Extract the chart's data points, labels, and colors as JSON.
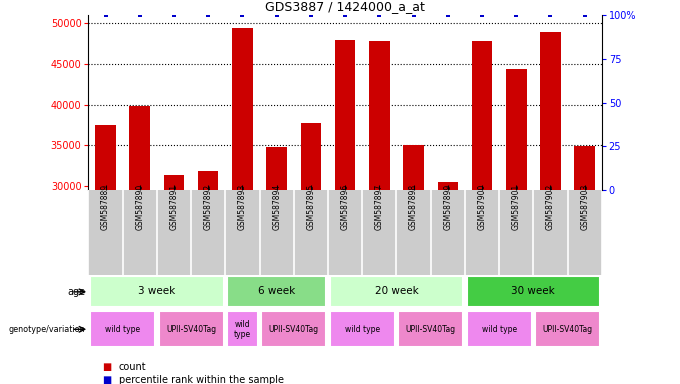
{
  "title": "GDS3887 / 1424000_a_at",
  "samples": [
    "GSM587889",
    "GSM587890",
    "GSM587891",
    "GSM587892",
    "GSM587893",
    "GSM587894",
    "GSM587895",
    "GSM587896",
    "GSM587897",
    "GSM587898",
    "GSM587899",
    "GSM587900",
    "GSM587901",
    "GSM587902",
    "GSM587903"
  ],
  "counts": [
    37500,
    39800,
    31300,
    31800,
    49500,
    34800,
    37700,
    48000,
    47900,
    35100,
    30500,
    47900,
    44400,
    49000,
    34900
  ],
  "percentile": [
    100,
    100,
    100,
    100,
    100,
    100,
    100,
    100,
    100,
    100,
    100,
    100,
    100,
    100,
    100
  ],
  "ylim_left": [
    29500,
    51000
  ],
  "ylim_right": [
    0,
    100
  ],
  "yticks_left": [
    30000,
    35000,
    40000,
    45000,
    50000
  ],
  "yticks_right": [
    0,
    25,
    50,
    75,
    100
  ],
  "bar_color": "#cc0000",
  "dot_color": "#0000cc",
  "age_groups": [
    {
      "label": "3 week",
      "start": 0,
      "end": 4,
      "color": "#ccffcc"
    },
    {
      "label": "6 week",
      "start": 4,
      "end": 7,
      "color": "#88dd88"
    },
    {
      "label": "20 week",
      "start": 7,
      "end": 11,
      "color": "#ccffcc"
    },
    {
      "label": "30 week",
      "start": 11,
      "end": 15,
      "color": "#44cc44"
    }
  ],
  "genotype_groups": [
    {
      "label": "wild type",
      "start": 0,
      "end": 2,
      "color": "#ee88ee"
    },
    {
      "label": "UPII-SV40Tag",
      "start": 2,
      "end": 4,
      "color": "#ee88cc"
    },
    {
      "label": "wild\ntype",
      "start": 4,
      "end": 5,
      "color": "#ee88ee"
    },
    {
      "label": "UPII-SV40Tag",
      "start": 5,
      "end": 7,
      "color": "#ee88cc"
    },
    {
      "label": "wild type",
      "start": 7,
      "end": 9,
      "color": "#ee88ee"
    },
    {
      "label": "UPII-SV40Tag",
      "start": 9,
      "end": 11,
      "color": "#ee88cc"
    },
    {
      "label": "wild type",
      "start": 11,
      "end": 13,
      "color": "#ee88ee"
    },
    {
      "label": "UPII-SV40Tag",
      "start": 13,
      "end": 15,
      "color": "#ee88cc"
    }
  ],
  "legend_count_color": "#cc0000",
  "legend_pct_color": "#0000cc",
  "background_color": "#ffffff",
  "sample_bg_color": "#cccccc"
}
